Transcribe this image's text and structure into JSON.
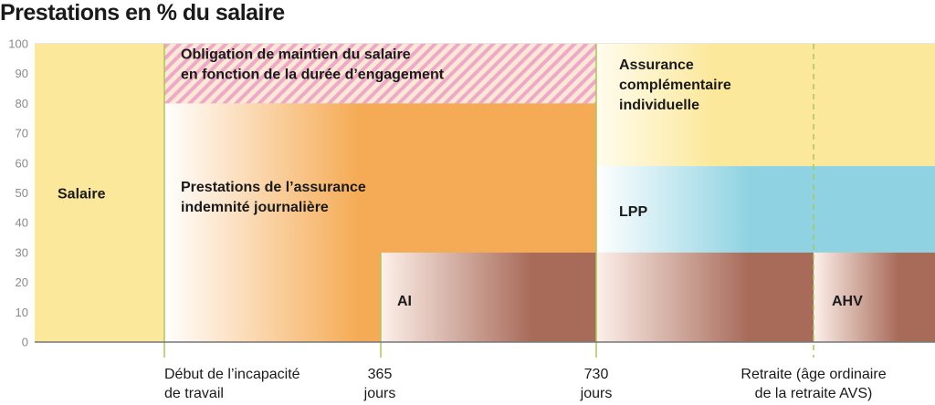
{
  "chart_data": {
    "type": "area",
    "title": "Prestations en % du salaire",
    "xlabel": "",
    "ylabel": "",
    "ylim": [
      0,
      100
    ],
    "y_ticks": [
      0,
      10,
      20,
      30,
      40,
      50,
      60,
      70,
      80,
      90,
      100
    ],
    "grid": true,
    "x_events": [
      {
        "key": "start",
        "label": [
          "Début de l’incapacité",
          "de travail"
        ]
      },
      {
        "key": "d365",
        "label": [
          "365",
          "jours"
        ]
      },
      {
        "key": "d730",
        "label": [
          "730",
          "jours"
        ]
      },
      {
        "key": "retirement",
        "label": [
          "Retraite (âge ordinaire",
          "de la retraite AVS)"
        ]
      }
    ],
    "segments": [
      {
        "key": "salaire",
        "label": [
          "Salaire"
        ],
        "from": "origin",
        "to": "start",
        "y0": 0,
        "y1": 100,
        "color": "#fce89a"
      },
      {
        "key": "obligation",
        "label": [
          "Obligation de maintien du salaire",
          "en fonction de la durée d’engagement"
        ],
        "from": "start",
        "to": "d730",
        "y0": 80,
        "y1": 100,
        "color": "#f0a8c8"
      },
      {
        "key": "indemnite",
        "label": [
          "Prestations de l’assurance",
          "indemnité journalière"
        ],
        "from": "start",
        "to": "d730",
        "y0": 0,
        "y1": 80,
        "color": "#f5ab55"
      },
      {
        "key": "ai",
        "label": [
          "AI"
        ],
        "from": "d365",
        "to": "d730",
        "y0": 0,
        "y1": 30,
        "color": "#a86b5a"
      },
      {
        "key": "complementaire",
        "label": [
          "Assurance",
          "complémentaire",
          "individuelle"
        ],
        "from": "d730",
        "to": "end",
        "y0": 59,
        "y1": 100,
        "color": "#fce89a"
      },
      {
        "key": "lpp",
        "label": [
          "LPP"
        ],
        "from": "d730",
        "to": "end",
        "y0": 30,
        "y1": 59,
        "color": "#8fd3e2"
      },
      {
        "key": "ai_post",
        "label": [],
        "from": "d730",
        "to": "retirement",
        "y0": 0,
        "y1": 30,
        "color": "#a86b5a"
      },
      {
        "key": "ahv",
        "label": [
          "AHV"
        ],
        "from": "retirement",
        "to": "end",
        "y0": 0,
        "y1": 30,
        "color": "#a86b5a"
      }
    ],
    "colors": {
      "grid": "#cfcfcf",
      "event_line": "#a8c85a",
      "axis": "#777777",
      "text": "#1a1a1a"
    }
  }
}
